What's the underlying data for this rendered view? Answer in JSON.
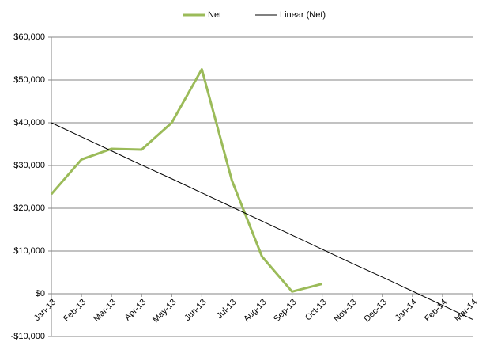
{
  "chart_data": {
    "type": "line",
    "categories": [
      "Jan-13",
      "Feb-13",
      "Mar-13",
      "Apr-13",
      "May-13",
      "Jun-13",
      "Jul-13",
      "Aug-13",
      "Sep-13",
      "Oct-13",
      "Nov-13",
      "Dec-13",
      "Jan-14",
      "Feb-14",
      "Mar-14"
    ],
    "series": [
      {
        "name": "Net",
        "color": "#9bbb59",
        "values": [
          23300,
          31400,
          33900,
          33700,
          40000,
          52500,
          26500,
          8700,
          500,
          2300,
          null,
          null,
          null,
          null,
          null
        ]
      },
      {
        "name": "Linear (Net)",
        "color": "#000000",
        "values": [
          40000,
          36700,
          33400,
          30100,
          26900,
          23600,
          20300,
          17000,
          13700,
          10400,
          7100,
          3900,
          600,
          -2700,
          -6000
        ]
      }
    ],
    "ylim": [
      -10000,
      60000
    ],
    "yticks": [
      {
        "value": -10000,
        "label": "-$10,000"
      },
      {
        "value": 0,
        "label": "$0"
      },
      {
        "value": 10000,
        "label": "$10,000"
      },
      {
        "value": 20000,
        "label": "$20,000"
      },
      {
        "value": 30000,
        "label": "$30,000"
      },
      {
        "value": 40000,
        "label": "$40,000"
      },
      {
        "value": 50000,
        "label": "$50,000"
      },
      {
        "value": 60000,
        "label": "$60,000"
      }
    ],
    "grid": true,
    "legend": "top"
  }
}
